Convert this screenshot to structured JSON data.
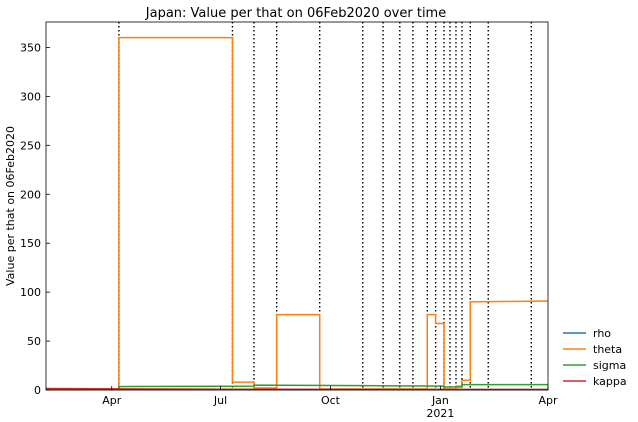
{
  "chart_data": {
    "type": "line",
    "title": "Japan: Value per that on 06Feb2020 over time",
    "xlabel": "",
    "ylabel": "Value per that on 06Feb2020",
    "xlim": [
      "2020-02-06",
      "2021-04-01"
    ],
    "ylim": [
      0,
      376
    ],
    "y_ticks": [
      0,
      50,
      100,
      150,
      200,
      250,
      300,
      350
    ],
    "x_ticks": [
      {
        "date": "2020-04-01",
        "label": "Apr",
        "sublabel": ""
      },
      {
        "date": "2020-07-01",
        "label": "Jul",
        "sublabel": ""
      },
      {
        "date": "2020-10-01",
        "label": "Oct",
        "sublabel": ""
      },
      {
        "date": "2021-01-01",
        "label": "Jan",
        "sublabel": "2021"
      },
      {
        "date": "2021-04-01",
        "label": "Apr",
        "sublabel": ""
      }
    ],
    "grid": false,
    "legend_position": "outside-right-bottom",
    "vlines": [
      "2020-04-07",
      "2020-07-11",
      "2020-07-29",
      "2020-08-17",
      "2020-09-22",
      "2020-10-28",
      "2020-11-14",
      "2020-11-28",
      "2020-12-09",
      "2020-12-21",
      "2020-12-28",
      "2021-01-04",
      "2021-01-09",
      "2021-01-14",
      "2021-01-19",
      "2021-01-26",
      "2021-02-10",
      "2021-03-18"
    ],
    "series": [
      {
        "name": "rho",
        "color": "#1f77b4",
        "points": [
          [
            "2020-02-06",
            0.5
          ],
          [
            "2021-04-01",
            0.5
          ]
        ]
      },
      {
        "name": "theta",
        "color": "#ff7f0e",
        "points": [
          [
            "2020-02-06",
            1
          ],
          [
            "2020-04-07",
            1
          ],
          [
            "2020-04-07",
            360
          ],
          [
            "2020-07-11",
            360
          ],
          [
            "2020-07-11",
            8
          ],
          [
            "2020-07-29",
            8
          ],
          [
            "2020-07-29",
            2
          ],
          [
            "2020-08-17",
            2
          ],
          [
            "2020-08-17",
            77
          ],
          [
            "2020-09-22",
            77
          ],
          [
            "2020-09-22",
            1
          ],
          [
            "2020-12-21",
            1
          ],
          [
            "2020-12-21",
            77
          ],
          [
            "2020-12-28",
            77
          ],
          [
            "2020-12-28",
            68
          ],
          [
            "2021-01-04",
            68
          ],
          [
            "2021-01-04",
            1
          ],
          [
            "2021-01-14",
            1
          ],
          [
            "2021-01-14",
            4
          ],
          [
            "2021-01-19",
            4
          ],
          [
            "2021-01-19",
            10
          ],
          [
            "2021-01-26",
            10
          ],
          [
            "2021-01-26",
            90
          ],
          [
            "2021-04-01",
            91
          ]
        ]
      },
      {
        "name": "sigma",
        "color": "#2ca02c",
        "points": [
          [
            "2020-02-06",
            0.5
          ],
          [
            "2020-04-07",
            0.5
          ],
          [
            "2020-04-07",
            3.5
          ],
          [
            "2020-07-29",
            4
          ],
          [
            "2020-07-29",
            5
          ],
          [
            "2020-10-28",
            4.5
          ],
          [
            "2021-01-04",
            4
          ],
          [
            "2021-01-04",
            3
          ],
          [
            "2021-01-19",
            3
          ],
          [
            "2021-01-19",
            5.5
          ],
          [
            "2021-04-01",
            5.5
          ]
        ]
      },
      {
        "name": "kappa",
        "color": "#d62728",
        "points": [
          [
            "2020-02-06",
            1.5
          ],
          [
            "2020-04-07",
            1.2
          ],
          [
            "2020-07-11",
            0.8
          ],
          [
            "2021-01-04",
            0.6
          ],
          [
            "2021-04-01",
            0.5
          ]
        ]
      }
    ]
  }
}
